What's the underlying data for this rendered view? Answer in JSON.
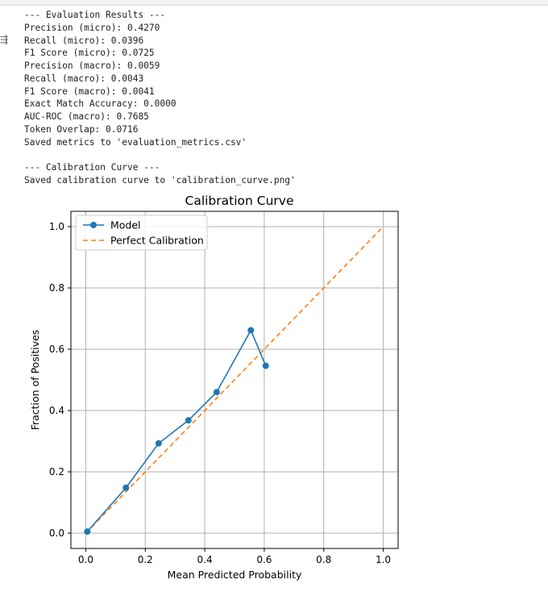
{
  "output": {
    "lines": [
      "--- Evaluation Results ---",
      "Precision (micro): 0.4270",
      "Recall (micro): 0.0396",
      "F1 Score (micro): 0.0725",
      "Precision (macro): 0.0059",
      "Recall (macro): 0.0043",
      "F1 Score (macro): 0.0041",
      "Exact Match Accuracy: 0.0000",
      "AUC-ROC (macro): 0.7685",
      "Token Overlap: 0.0716",
      "Saved metrics to 'evaluation_metrics.csv'",
      "",
      "--- Calibration Curve ---",
      "Saved calibration curve to 'calibration_curve.png'"
    ]
  },
  "chart_data": {
    "type": "line",
    "title": "Calibration Curve",
    "xlabel": "Mean Predicted Probability",
    "ylabel": "Fraction of Positives",
    "xlim": [
      -0.05,
      1.05
    ],
    "ylim": [
      -0.05,
      1.05
    ],
    "xticks": [
      "0.0",
      "0.2",
      "0.4",
      "0.6",
      "0.8",
      "1.0"
    ],
    "yticks": [
      "0.0",
      "0.2",
      "0.4",
      "0.6",
      "0.8",
      "1.0"
    ],
    "grid": true,
    "legend_position": "top-left",
    "series": [
      {
        "name": "Model",
        "style": "solid-with-markers",
        "color": "#1f77b4",
        "x": [
          0.005,
          0.135,
          0.245,
          0.345,
          0.44,
          0.555,
          0.605
        ],
        "y": [
          0.005,
          0.148,
          0.293,
          0.368,
          0.46,
          0.662,
          0.546
        ]
      },
      {
        "name": "Perfect Calibration",
        "style": "dashed",
        "color": "#ff7f0e",
        "x": [
          0,
          1
        ],
        "y": [
          0,
          1
        ]
      }
    ]
  }
}
